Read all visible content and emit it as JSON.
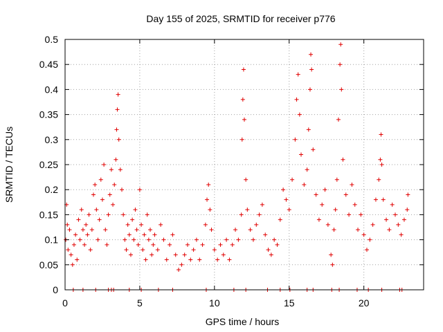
{
  "chart_data": {
    "type": "scatter",
    "title": "Day 155 of 2025, SRMTID for receiver p776",
    "xlabel": "GPS time / hours",
    "ylabel": "SRMTID / TECUs",
    "xlim": [
      0,
      24
    ],
    "ylim": [
      0,
      0.5
    ],
    "xticks": [
      0,
      5,
      10,
      15,
      20
    ],
    "xtick_labels": [
      "0",
      "5",
      "10",
      "15",
      "20"
    ],
    "yticks": [
      0,
      0.05,
      0.1,
      0.15,
      0.2,
      0.25,
      0.3,
      0.35,
      0.4,
      0.45,
      0.5
    ],
    "ytick_labels": [
      "0",
      "0.05",
      "0.1",
      "0.15",
      "0.2",
      "0.25",
      "0.3",
      "0.35",
      "0.4",
      "0.45",
      "0.5"
    ],
    "grid": true,
    "marker": "+",
    "marker_color": "#e00000",
    "series": [
      {
        "name": "SRMTID",
        "points": [
          [
            0.05,
            0.1
          ],
          [
            0.1,
            0.17
          ],
          [
            0.15,
            0.13
          ],
          [
            0.2,
            0.08
          ],
          [
            0.3,
            0.12
          ],
          [
            0.4,
            0.07
          ],
          [
            0.5,
            0.05
          ],
          [
            0.6,
            0.09
          ],
          [
            0.7,
            0.11
          ],
          [
            0.8,
            0.06
          ],
          [
            0.9,
            0.14
          ],
          [
            1.0,
            0.1
          ],
          [
            1.1,
            0.16
          ],
          [
            1.2,
            0.12
          ],
          [
            1.3,
            0.09
          ],
          [
            1.4,
            0.13
          ],
          [
            1.5,
            0.11
          ],
          [
            1.6,
            0.15
          ],
          [
            1.7,
            0.08
          ],
          [
            1.8,
            0.12
          ],
          [
            1.9,
            0.19
          ],
          [
            2.0,
            0.21
          ],
          [
            2.1,
            0.16
          ],
          [
            2.2,
            0.1
          ],
          [
            2.3,
            0.14
          ],
          [
            2.4,
            0.22
          ],
          [
            2.5,
            0.18
          ],
          [
            2.6,
            0.25
          ],
          [
            2.7,
            0.12
          ],
          [
            2.8,
            0.09
          ],
          [
            2.9,
            0.15
          ],
          [
            3.0,
            0.19
          ],
          [
            3.1,
            0.24
          ],
          [
            3.2,
            0.17
          ],
          [
            3.3,
            0.21
          ],
          [
            3.4,
            0.26
          ],
          [
            3.45,
            0.32
          ],
          [
            3.5,
            0.36
          ],
          [
            3.55,
            0.39
          ],
          [
            3.6,
            0.3
          ],
          [
            3.7,
            0.24
          ],
          [
            3.8,
            0.2
          ],
          [
            3.9,
            0.15
          ],
          [
            4.0,
            0.1
          ],
          [
            4.1,
            0.08
          ],
          [
            4.2,
            0.13
          ],
          [
            4.3,
            0.11
          ],
          [
            4.4,
            0.07
          ],
          [
            4.5,
            0.14
          ],
          [
            4.6,
            0.1
          ],
          [
            4.7,
            0.16
          ],
          [
            4.8,
            0.12
          ],
          [
            4.9,
            0.09
          ],
          [
            5.0,
            0.2
          ],
          [
            5.1,
            0.13
          ],
          [
            5.2,
            0.08
          ],
          [
            5.3,
            0.11
          ],
          [
            5.4,
            0.06
          ],
          [
            5.5,
            0.15
          ],
          [
            5.6,
            0.1
          ],
          [
            5.7,
            0.12
          ],
          [
            5.8,
            0.07
          ],
          [
            5.9,
            0.09
          ],
          [
            6.0,
            0.11
          ],
          [
            6.2,
            0.08
          ],
          [
            6.4,
            0.13
          ],
          [
            6.6,
            0.1
          ],
          [
            6.8,
            0.06
          ],
          [
            7.0,
            0.09
          ],
          [
            7.2,
            0.11
          ],
          [
            7.4,
            0.07
          ],
          [
            7.6,
            0.04
          ],
          [
            7.8,
            0.05
          ],
          [
            8.0,
            0.07
          ],
          [
            8.2,
            0.09
          ],
          [
            8.4,
            0.06
          ],
          [
            8.6,
            0.08
          ],
          [
            8.8,
            0.1
          ],
          [
            9.0,
            0.06
          ],
          [
            9.2,
            0.09
          ],
          [
            9.4,
            0.13
          ],
          [
            9.5,
            0.18
          ],
          [
            9.6,
            0.21
          ],
          [
            9.7,
            0.16
          ],
          [
            9.8,
            0.12
          ],
          [
            10.0,
            0.08
          ],
          [
            10.2,
            0.06
          ],
          [
            10.4,
            0.09
          ],
          [
            10.6,
            0.07
          ],
          [
            10.8,
            0.1
          ],
          [
            11.0,
            0.06
          ],
          [
            11.2,
            0.09
          ],
          [
            11.4,
            0.12
          ],
          [
            11.6,
            0.1
          ],
          [
            11.8,
            0.15
          ],
          [
            11.85,
            0.3
          ],
          [
            11.9,
            0.38
          ],
          [
            11.95,
            0.44
          ],
          [
            12.0,
            0.34
          ],
          [
            12.1,
            0.22
          ],
          [
            12.2,
            0.16
          ],
          [
            12.4,
            0.12
          ],
          [
            12.6,
            0.1
          ],
          [
            12.8,
            0.13
          ],
          [
            13.0,
            0.15
          ],
          [
            13.2,
            0.17
          ],
          [
            13.4,
            0.11
          ],
          [
            13.6,
            0.08
          ],
          [
            13.8,
            0.07
          ],
          [
            14.0,
            0.1
          ],
          [
            14.2,
            0.09
          ],
          [
            14.4,
            0.14
          ],
          [
            14.6,
            0.2
          ],
          [
            14.8,
            0.18
          ],
          [
            15.0,
            0.16
          ],
          [
            15.2,
            0.22
          ],
          [
            15.4,
            0.3
          ],
          [
            15.5,
            0.38
          ],
          [
            15.6,
            0.43
          ],
          [
            15.7,
            0.35
          ],
          [
            15.8,
            0.27
          ],
          [
            16.0,
            0.21
          ],
          [
            16.2,
            0.24
          ],
          [
            16.3,
            0.32
          ],
          [
            16.4,
            0.4
          ],
          [
            16.45,
            0.47
          ],
          [
            16.5,
            0.44
          ],
          [
            16.6,
            0.28
          ],
          [
            16.8,
            0.19
          ],
          [
            17.0,
            0.14
          ],
          [
            17.2,
            0.17
          ],
          [
            17.4,
            0.2
          ],
          [
            17.6,
            0.13
          ],
          [
            17.8,
            0.07
          ],
          [
            17.9,
            0.05
          ],
          [
            18.0,
            0.12
          ],
          [
            18.1,
            0.16
          ],
          [
            18.2,
            0.22
          ],
          [
            18.3,
            0.34
          ],
          [
            18.4,
            0.45
          ],
          [
            18.45,
            0.49
          ],
          [
            18.5,
            0.4
          ],
          [
            18.6,
            0.26
          ],
          [
            18.8,
            0.19
          ],
          [
            19.0,
            0.15
          ],
          [
            19.2,
            0.21
          ],
          [
            19.4,
            0.17
          ],
          [
            19.6,
            0.12
          ],
          [
            19.8,
            0.15
          ],
          [
            20.0,
            0.11
          ],
          [
            20.2,
            0.08
          ],
          [
            20.4,
            0.1
          ],
          [
            20.6,
            0.13
          ],
          [
            20.8,
            0.18
          ],
          [
            21.0,
            0.22
          ],
          [
            21.1,
            0.26
          ],
          [
            21.15,
            0.31
          ],
          [
            21.2,
            0.25
          ],
          [
            21.3,
            0.18
          ],
          [
            21.5,
            0.14
          ],
          [
            21.7,
            0.12
          ],
          [
            21.9,
            0.17
          ],
          [
            22.1,
            0.15
          ],
          [
            22.3,
            0.13
          ],
          [
            22.5,
            0.11
          ],
          [
            22.7,
            0.14
          ],
          [
            22.9,
            0.16
          ],
          [
            22.95,
            0.19
          ]
        ],
        "zero_points": [
          0.55,
          1.2,
          2.05,
          2.9,
          3.1,
          3.25,
          4.3,
          5.1,
          6.25,
          7.2,
          9.45,
          11.3,
          12.1,
          13.55,
          14.4,
          15.05,
          16.2,
          16.6,
          17.85,
          18.35,
          19.55,
          20.3,
          21.2,
          22.4,
          22.55
        ]
      }
    ]
  }
}
